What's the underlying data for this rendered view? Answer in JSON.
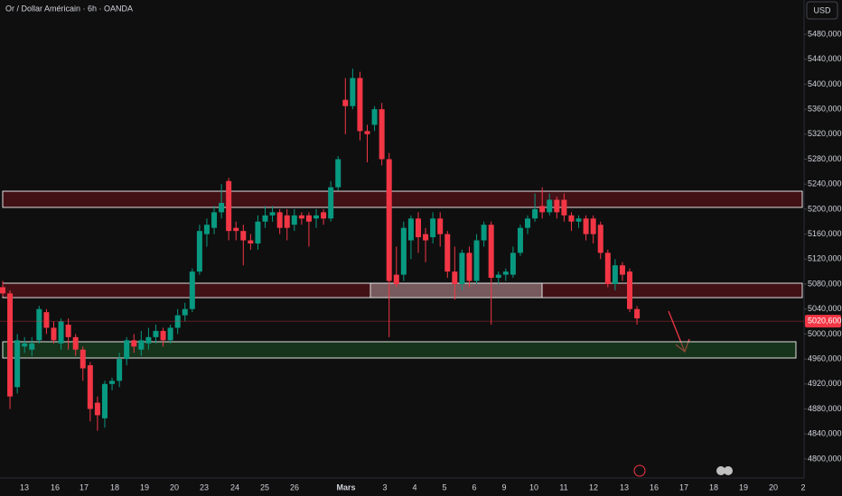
{
  "chart_data": {
    "type": "candlestick",
    "title": "Or / Dollar Américain · 6h · OANDA",
    "currency": "USD",
    "up_color": "#089981",
    "down_color": "#f23645",
    "ylim": [
      4769500,
      5534900
    ],
    "yticks": [
      {
        "value": 5480000,
        "label": "5480,000"
      },
      {
        "value": 5440000,
        "label": "5440,000"
      },
      {
        "value": 5400000,
        "label": "5400,000"
      },
      {
        "value": 5360000,
        "label": "5360,000"
      },
      {
        "value": 5320000,
        "label": "5320,000"
      },
      {
        "value": 5280000,
        "label": "5280,000"
      },
      {
        "value": 5240000,
        "label": "5240,000"
      },
      {
        "value": 5200000,
        "label": "5200,000"
      },
      {
        "value": 5160000,
        "label": "5160,000"
      },
      {
        "value": 5120000,
        "label": "5120,000"
      },
      {
        "value": 5080000,
        "label": "5080,000"
      },
      {
        "value": 5040000,
        "label": "5040,000"
      },
      {
        "value": 5000000,
        "label": "5000,000"
      },
      {
        "value": 4960000,
        "label": "4960,000"
      },
      {
        "value": 4920000,
        "label": "4920,000"
      },
      {
        "value": 4880000,
        "label": "4880,000"
      },
      {
        "value": 4840000,
        "label": "4840,000"
      },
      {
        "value": 4800000,
        "label": "4800,000"
      }
    ],
    "grid": false,
    "x_labels": [
      "13",
      "16",
      "17",
      "18",
      "19",
      "20",
      "23",
      "24",
      "25",
      "26",
      "Mars",
      "3",
      "4",
      "5",
      "6",
      "9",
      "10",
      "11",
      "12",
      "13",
      "16",
      "17",
      "18",
      "19",
      "20",
      "2"
    ],
    "last_price": {
      "value": 5020600,
      "label": "5020,600",
      "color": "#f23645"
    },
    "zones": [
      {
        "top": 5228700,
        "bottom": 5202800,
        "color": "rgba(110,20,30,0.55)"
      },
      {
        "top": 5081400,
        "bottom": 5058300,
        "color": "rgba(110,20,30,0.55)"
      },
      {
        "top": 5081400,
        "bottom": 5058300,
        "color": "rgba(200,200,200,0.4)"
      },
      {
        "top": 4987600,
        "bottom": 4961600,
        "color": "rgba(30,90,40,0.5)"
      }
    ],
    "candles": [
      [
        5075000,
        5085000,
        5060000,
        5065000
      ],
      [
        5065000,
        5070000,
        4880000,
        4900000
      ],
      [
        4915000,
        5000000,
        4905000,
        4990000
      ],
      [
        4980000,
        4995000,
        4970000,
        4985000
      ],
      [
        4975000,
        4995000,
        4965000,
        4985000
      ],
      [
        4990000,
        5045000,
        4985000,
        5040000
      ],
      [
        5035000,
        5040000,
        5000000,
        5010000
      ],
      [
        5010000,
        5020000,
        4985000,
        4990000
      ],
      [
        4985000,
        5025000,
        4975000,
        5020000
      ],
      [
        5015000,
        5025000,
        4975000,
        4995000
      ],
      [
        4995000,
        5000000,
        4965000,
        4975000
      ],
      [
        4975000,
        4980000,
        4925000,
        4945000
      ],
      [
        4950000,
        4955000,
        4860000,
        4880000
      ],
      [
        4890000,
        4900000,
        4845000,
        4870000
      ],
      [
        4865000,
        4925000,
        4850000,
        4920000
      ],
      [
        4920000,
        4930000,
        4910000,
        4925000
      ],
      [
        4925000,
        4970000,
        4915000,
        4960000
      ],
      [
        4960000,
        4995000,
        4950000,
        4990000
      ],
      [
        4990000,
        5000000,
        4970000,
        4980000
      ],
      [
        4975000,
        5005000,
        4965000,
        4990000
      ],
      [
        4985000,
        5010000,
        4975000,
        4995000
      ],
      [
        4995000,
        5015000,
        4985000,
        5005000
      ],
      [
        5005000,
        5010000,
        4980000,
        4990000
      ],
      [
        4990000,
        5015000,
        4985000,
        5010000
      ],
      [
        5010000,
        5040000,
        5000000,
        5030000
      ],
      [
        5030000,
        5050000,
        5020000,
        5040000
      ],
      [
        5040000,
        5105000,
        5035000,
        5100000
      ],
      [
        5100000,
        5175000,
        5095000,
        5165000
      ],
      [
        5160000,
        5185000,
        5140000,
        5175000
      ],
      [
        5170000,
        5205000,
        5160000,
        5195000
      ],
      [
        5195000,
        5240000,
        5185000,
        5210000
      ],
      [
        5245000,
        5250000,
        5150000,
        5165000
      ],
      [
        5170000,
        5180000,
        5150000,
        5165000
      ],
      [
        5165000,
        5175000,
        5110000,
        5150000
      ],
      [
        5150000,
        5160000,
        5135000,
        5145000
      ],
      [
        5145000,
        5190000,
        5135000,
        5180000
      ],
      [
        5180000,
        5205000,
        5170000,
        5190000
      ],
      [
        5190000,
        5205000,
        5180000,
        5195000
      ],
      [
        5195000,
        5200000,
        5160000,
        5170000
      ],
      [
        5190000,
        5200000,
        5150000,
        5170000
      ],
      [
        5175000,
        5200000,
        5165000,
        5190000
      ],
      [
        5190000,
        5195000,
        5175000,
        5185000
      ],
      [
        5190000,
        5195000,
        5140000,
        5180000
      ],
      [
        5185000,
        5200000,
        5170000,
        5190000
      ],
      [
        5195000,
        5200000,
        5175000,
        5185000
      ],
      [
        5185000,
        5245000,
        5180000,
        5235000
      ],
      [
        5235000,
        5285000,
        5230000,
        5280000
      ],
      [
        5375000,
        5410000,
        5320000,
        5365000
      ],
      [
        5365000,
        5425000,
        5360000,
        5410000
      ],
      [
        5410000,
        5420000,
        5310000,
        5325000
      ],
      [
        5325000,
        5335000,
        5275000,
        5320000
      ],
      [
        5335000,
        5365000,
        5325000,
        5360000
      ],
      [
        5360000,
        5370000,
        5270000,
        5280000
      ],
      [
        5280000,
        5290000,
        4995000,
        5085000
      ],
      [
        5095000,
        5140000,
        5075000,
        5080000
      ],
      [
        5095000,
        5180000,
        5085000,
        5170000
      ],
      [
        5150000,
        5190000,
        5120000,
        5185000
      ],
      [
        5185000,
        5195000,
        5130000,
        5155000
      ],
      [
        5160000,
        5170000,
        5115000,
        5150000
      ],
      [
        5155000,
        5195000,
        5145000,
        5185000
      ],
      [
        5185000,
        5195000,
        5140000,
        5160000
      ],
      [
        5160000,
        5165000,
        5090000,
        5100000
      ],
      [
        5100000,
        5140000,
        5055000,
        5080000
      ],
      [
        5080000,
        5135000,
        5070000,
        5130000
      ],
      [
        5130000,
        5140000,
        5075000,
        5085000
      ],
      [
        5085000,
        5160000,
        5080000,
        5150000
      ],
      [
        5150000,
        5180000,
        5140000,
        5175000
      ],
      [
        5175000,
        5180000,
        5015000,
        5090000
      ],
      [
        5090000,
        5100000,
        5080000,
        5095000
      ],
      [
        5095000,
        5105000,
        5085000,
        5100000
      ],
      [
        5095000,
        5140000,
        5090000,
        5130000
      ],
      [
        5130000,
        5175000,
        5125000,
        5170000
      ],
      [
        5170000,
        5190000,
        5160000,
        5185000
      ],
      [
        5185000,
        5225000,
        5180000,
        5200000
      ],
      [
        5205000,
        5235000,
        5185000,
        5195000
      ],
      [
        5195000,
        5225000,
        5190000,
        5215000
      ],
      [
        5215000,
        5220000,
        5185000,
        5195000
      ],
      [
        5215000,
        5225000,
        5180000,
        5190000
      ],
      [
        5190000,
        5195000,
        5165000,
        5180000
      ],
      [
        5180000,
        5190000,
        5170000,
        5185000
      ],
      [
        5185000,
        5190000,
        5150000,
        5160000
      ],
      [
        5185000,
        5190000,
        5145000,
        5160000
      ],
      [
        5175000,
        5180000,
        5120000,
        5130000
      ],
      [
        5130000,
        5135000,
        5075000,
        5080000
      ],
      [
        5080000,
        5120000,
        5070000,
        5110000
      ],
      [
        5110000,
        5115000,
        5085000,
        5095000
      ],
      [
        5100000,
        5105000,
        5035000,
        5040000
      ],
      [
        5040000,
        5045000,
        5015000,
        5025000
      ]
    ]
  }
}
